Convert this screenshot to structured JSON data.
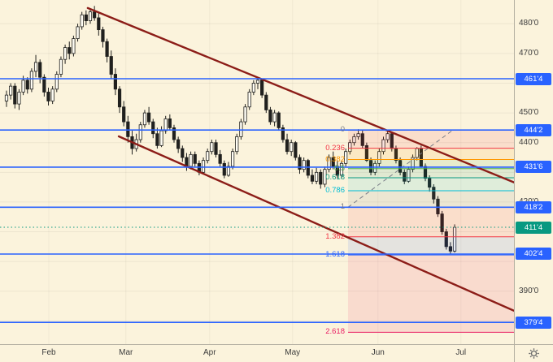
{
  "chart_data": {
    "type": "candlestick",
    "x_axis": {
      "months": [
        {
          "label": "Feb",
          "bar": 10.1
        },
        {
          "label": "Mar",
          "bar": 28.5
        },
        {
          "label": "Apr",
          "bar": 48.5
        },
        {
          "label": "May",
          "bar": 68.3
        },
        {
          "label": "Jun",
          "bar": 88.7
        },
        {
          "label": "Jul",
          "bar": 108.5
        }
      ]
    },
    "y_axis": {
      "ticks": [
        {
          "label": "480'0",
          "price": 480
        },
        {
          "label": "470'0",
          "price": 470
        },
        {
          "label": "450'0",
          "price": 450
        },
        {
          "label": "440'0",
          "price": 440
        },
        {
          "label": "420'0",
          "price": 420
        },
        {
          "label": "390'0",
          "price": 390
        }
      ],
      "grid_prices": [
        480,
        470,
        460,
        450,
        440,
        430,
        420,
        410,
        400,
        390,
        380
      ]
    },
    "price_lines": [
      {
        "label": "461'4",
        "price": 461.5
      },
      {
        "label": "444'2",
        "price": 444.25
      },
      {
        "label": "431'6",
        "price": 431.75
      },
      {
        "label": "418'2",
        "price": 418.25
      },
      {
        "label": "402'4",
        "price": 402.5
      },
      {
        "label": "379'4",
        "price": 379.5
      }
    ],
    "last_price": {
      "label": "411'4",
      "price": 411.5
    },
    "fib_retracement": {
      "anchors": {
        "start": {
          "bar": 81.55,
          "price": 418.25
        },
        "end": {
          "bar": 106.6,
          "price": 444.25
        }
      },
      "levels": [
        {
          "label": "0",
          "price": 444.25,
          "color": "#787b86"
        },
        {
          "label": "0.236",
          "price": 438.11,
          "color": "#f23645"
        },
        {
          "label": "0.382",
          "price": 434.32,
          "color": "#ff9800"
        },
        {
          "label": "0.5",
          "price": 431.25,
          "color": "#4caf50"
        },
        {
          "label": "0.618",
          "price": 428.18,
          "color": "#089981"
        },
        {
          "label": "0.786",
          "price": 423.81,
          "color": "#00bcd4"
        },
        {
          "label": "1",
          "price": 418.25,
          "color": "#787b86"
        },
        {
          "label": "1.382",
          "price": 408.32,
          "color": "#f23645"
        },
        {
          "label": "1.618",
          "price": 402.18,
          "color": "#2962ff"
        },
        {
          "label": "2.618",
          "price": 376.18,
          "color": "#e91e63"
        }
      ]
    },
    "trend_channel": [
      {
        "start": {
          "bar": 19.4,
          "price": 485.3
        },
        "end": {
          "bar": 121.2,
          "price": 426.6
        }
      },
      {
        "start": {
          "bar": 26.8,
          "price": 442.1
        },
        "end": {
          "bar": 121.2,
          "price": 383.4
        }
      }
    ],
    "colors": {
      "background": "#fbf3dc",
      "candle_up": "#fffdf4",
      "candle_down": "#20201e",
      "candle_border": "#20201e",
      "horizontal_line": "#2962ff",
      "last_price": "#089981",
      "trend_channel": "#8c1d18",
      "axis_text": "#3c3c3c",
      "fib_dash": "#787b86"
    },
    "candles": [
      [
        454,
        457.5,
        452,
        456
      ],
      [
        456,
        460,
        454.5,
        459
      ],
      [
        459,
        460,
        451.5,
        453
      ],
      [
        453,
        458,
        451,
        457
      ],
      [
        457,
        462.5,
        456,
        461
      ],
      [
        461,
        462,
        456.5,
        458
      ],
      [
        458,
        465,
        457,
        464
      ],
      [
        464,
        469.5,
        462,
        467
      ],
      [
        467,
        468,
        460,
        462
      ],
      [
        462,
        463,
        455.5,
        457
      ],
      [
        457,
        458.5,
        452.5,
        454
      ],
      [
        454,
        459,
        453,
        458
      ],
      [
        458,
        464,
        457,
        463
      ],
      [
        463,
        469,
        462,
        468
      ],
      [
        468,
        473,
        466.5,
        472
      ],
      [
        472,
        474,
        468,
        470
      ],
      [
        470,
        476,
        469,
        475
      ],
      [
        475,
        480,
        474,
        479
      ],
      [
        479,
        484,
        478,
        483
      ],
      [
        483,
        484.5,
        479.5,
        481
      ],
      [
        481,
        485,
        480,
        484
      ],
      [
        484,
        486,
        481,
        482
      ],
      [
        482,
        484,
        476,
        478
      ],
      [
        478,
        479,
        472,
        474
      ],
      [
        474,
        475,
        467,
        469
      ],
      [
        469,
        471,
        461.5,
        463
      ],
      [
        463,
        465,
        456,
        458
      ],
      [
        458,
        459,
        450,
        452
      ],
      [
        452,
        454,
        445.5,
        447
      ],
      [
        447,
        449,
        440,
        442
      ],
      [
        442,
        444,
        436,
        438
      ],
      [
        438,
        443,
        437,
        441
      ],
      [
        441,
        447,
        440,
        446
      ],
      [
        446,
        451,
        445,
        450
      ],
      [
        450,
        452,
        446,
        447
      ],
      [
        447,
        448,
        441.5,
        443
      ],
      [
        443,
        445,
        438,
        439
      ],
      [
        439,
        445.5,
        438.5,
        444
      ],
      [
        444,
        449,
        443,
        448
      ],
      [
        448,
        449.5,
        444,
        445
      ],
      [
        445,
        446,
        440,
        441
      ],
      [
        441,
        442,
        436.5,
        438
      ],
      [
        438,
        439,
        433.5,
        435
      ],
      [
        435,
        436.5,
        430.5,
        432
      ],
      [
        432,
        437,
        431,
        436
      ],
      [
        436,
        437,
        432,
        433
      ],
      [
        433,
        434,
        429,
        430
      ],
      [
        430,
        435,
        429.5,
        434
      ],
      [
        434,
        438,
        433,
        437
      ],
      [
        437,
        441,
        436,
        440
      ],
      [
        440,
        441,
        435,
        436
      ],
      [
        436,
        437.5,
        432,
        433
      ],
      [
        433,
        434,
        428,
        429
      ],
      [
        429,
        433.5,
        428.5,
        432
      ],
      [
        432,
        438,
        431,
        437
      ],
      [
        437,
        443,
        436,
        442
      ],
      [
        442,
        448,
        441,
        447
      ],
      [
        447,
        453,
        446,
        452
      ],
      [
        452,
        458,
        451,
        457
      ],
      [
        457,
        461,
        456,
        460
      ],
      [
        460,
        462,
        458,
        461
      ],
      [
        461,
        461.5,
        455,
        456
      ],
      [
        456,
        457,
        450,
        451
      ],
      [
        451,
        452,
        446,
        447
      ],
      [
        447,
        451,
        445.5,
        450
      ],
      [
        450,
        450.5,
        444,
        445
      ],
      [
        445,
        446,
        440,
        441
      ],
      [
        441,
        443,
        436,
        437
      ],
      [
        437,
        441,
        435.5,
        440
      ],
      [
        440,
        440.5,
        434,
        435
      ],
      [
        435,
        436,
        429.5,
        431
      ],
      [
        431,
        435,
        430,
        434
      ],
      [
        434,
        434.5,
        428,
        429
      ],
      [
        429,
        431,
        426,
        427
      ],
      [
        427,
        431.5,
        426,
        430
      ],
      [
        430,
        431,
        424.5,
        426
      ],
      [
        426,
        432,
        425,
        431
      ],
      [
        431,
        436,
        430,
        435
      ],
      [
        435,
        437,
        431,
        432
      ],
      [
        432,
        434,
        428,
        429
      ],
      [
        429,
        434,
        428,
        433
      ],
      [
        433,
        438,
        432,
        437
      ],
      [
        437,
        441,
        436,
        440
      ],
      [
        440,
        443,
        439,
        442
      ],
      [
        442,
        444.5,
        441,
        443
      ],
      [
        443,
        444,
        438,
        439
      ],
      [
        439,
        440,
        433.5,
        434
      ],
      [
        434,
        435,
        429,
        430
      ],
      [
        430,
        434,
        429,
        433
      ],
      [
        433,
        438,
        432,
        437
      ],
      [
        437,
        442,
        436,
        441
      ],
      [
        441,
        444,
        440,
        443
      ],
      [
        443,
        443.5,
        437,
        438
      ],
      [
        438,
        439,
        433,
        434
      ],
      [
        434,
        435,
        429,
        430
      ],
      [
        430,
        431,
        426,
        427
      ],
      [
        427,
        432,
        426.5,
        431
      ],
      [
        431,
        436,
        430,
        435
      ],
      [
        435,
        438.5,
        434,
        438
      ],
      [
        438,
        439,
        431.5,
        432
      ],
      [
        432,
        433,
        427,
        428
      ],
      [
        428,
        429,
        423.5,
        425
      ],
      [
        425,
        426,
        419.5,
        421
      ],
      [
        421,
        422,
        415,
        416
      ],
      [
        416,
        417,
        409,
        410
      ],
      [
        410,
        411,
        404,
        405
      ],
      [
        405,
        406.5,
        402.5,
        403.5
      ],
      [
        403.5,
        412.5,
        403,
        411.5
      ]
    ]
  },
  "controls": {
    "settings_icon": "gear"
  }
}
